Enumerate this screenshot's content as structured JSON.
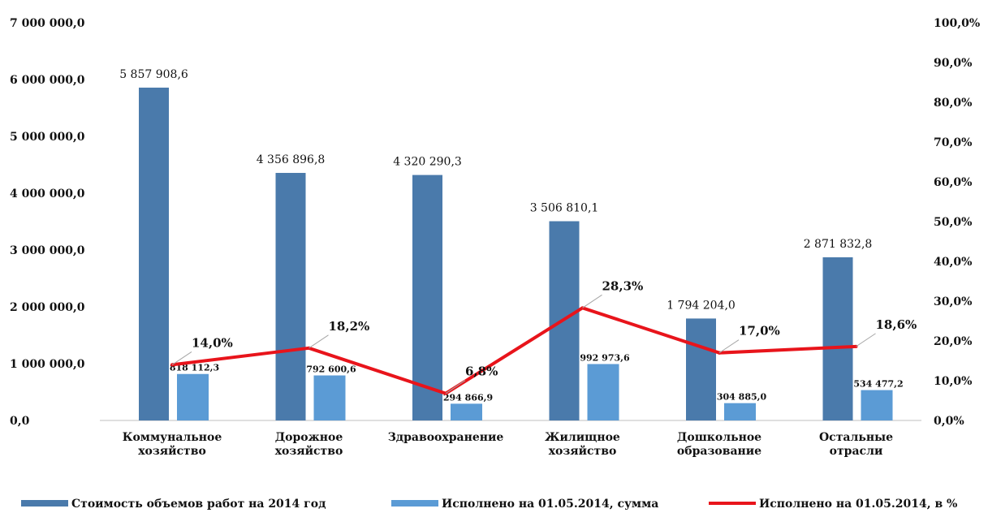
{
  "chart_data": {
    "type": "bar",
    "categories": [
      [
        "Коммунальное",
        "хозяйство"
      ],
      [
        "Дорожное",
        "хозяйство"
      ],
      [
        "Здравоохранение"
      ],
      [
        "Жилищное",
        "хозяйство"
      ],
      [
        "Дошкольное",
        "образование"
      ],
      [
        "Остальные",
        "отрасли"
      ]
    ],
    "series": [
      {
        "name": "Стоимость объемов работ на 2014 год",
        "type": "bar",
        "axis": "left",
        "color": "#4a7aab",
        "values": [
          5857908.6,
          4356896.8,
          4320290.3,
          3506810.1,
          1794204.0,
          2871832.8
        ],
        "labels": [
          "5 857 908,6",
          "4 356 896,8",
          "4 320 290,3",
          "3 506 810,1",
          "1 794 204,0",
          "2 871 832,8"
        ]
      },
      {
        "name": "Исполнено на 01.05.2014, сумма",
        "type": "bar",
        "axis": "left",
        "color": "#5b9bd5",
        "values": [
          818112.3,
          792600.6,
          294866.9,
          992973.6,
          304885.0,
          534477.2
        ],
        "labels": [
          "818 112,3",
          "792 600,6",
          "294 866,9",
          "992 973,6",
          "304 885,0",
          "534 477,2"
        ]
      },
      {
        "name": "Исполнено на 01.05.2014, в %",
        "type": "line",
        "axis": "right",
        "color": "#e8141b",
        "values": [
          14.0,
          18.2,
          6.8,
          28.3,
          17.0,
          18.6
        ],
        "labels": [
          "14,0%",
          "18,2%",
          "6,8%",
          "28,3%",
          "17,0%",
          "18,6%"
        ]
      }
    ],
    "y_left": {
      "ylim": [
        0,
        7000000
      ],
      "ticks": [
        "0,0",
        "1 000 000,0",
        "2 000 000,0",
        "3 000 000,0",
        "4 000 000,0",
        "5 000 000,0",
        "6 000 000,0",
        "7 000 000,0"
      ]
    },
    "y_right": {
      "ylim": [
        0,
        100
      ],
      "ticks": [
        "0,0%",
        "10,0%",
        "20,0%",
        "30,0%",
        "40,0%",
        "50,0%",
        "60,0%",
        "70,0%",
        "80,0%",
        "90,0%",
        "100,0%"
      ]
    },
    "grid": false,
    "legend": "bottom"
  }
}
